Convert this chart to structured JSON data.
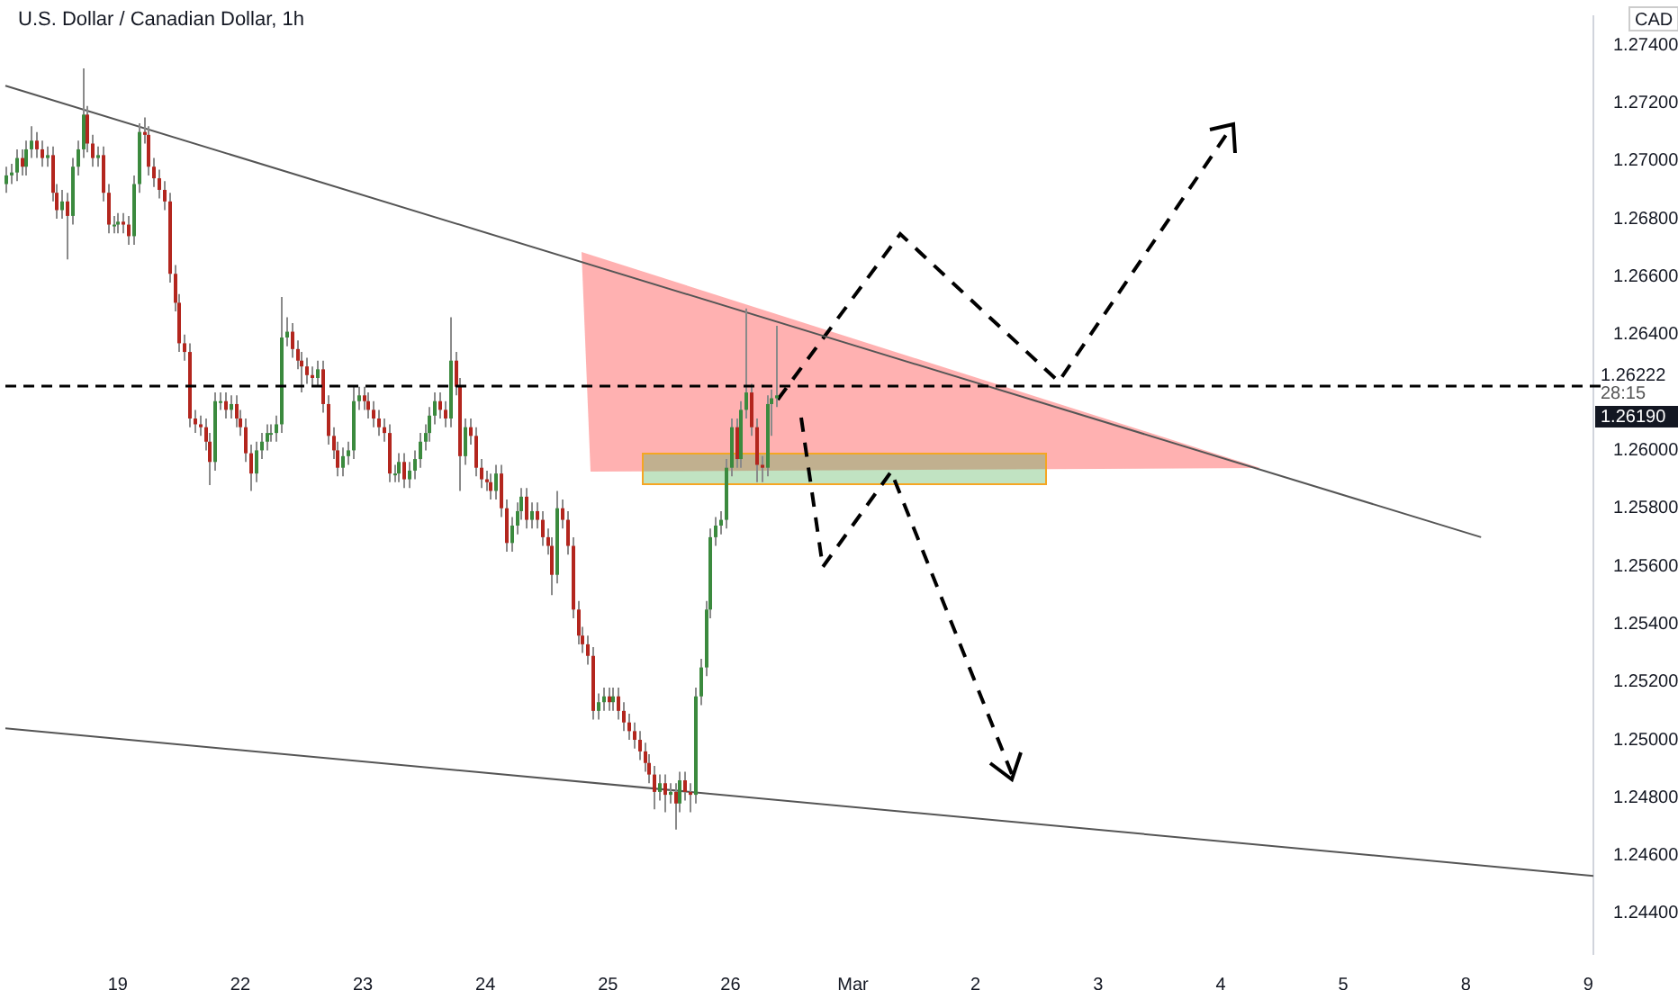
{
  "chart_data": {
    "type": "candlestick",
    "title": "U.S. Dollar / Canadian Dollar, 1h",
    "ylabel": "CAD",
    "categories": [
      null,
      null,
      null,
      null,
      null,
      null,
      null,
      null,
      null,
      null,
      null,
      null,
      null,
      null,
      null,
      null,
      null,
      null,
      null,
      null,
      null,
      null,
      "19",
      null,
      null,
      null,
      null,
      null,
      null,
      null,
      null,
      null,
      null,
      null,
      null,
      null,
      null,
      null,
      null,
      null,
      null,
      null,
      null,
      null,
      null,
      null,
      "22",
      null,
      null,
      null,
      null,
      null,
      null,
      null,
      null,
      null,
      null,
      null,
      null,
      null,
      null,
      null,
      null,
      null,
      null,
      null,
      null,
      null,
      null,
      null,
      "23",
      null,
      null,
      null,
      null,
      null,
      null,
      null,
      null,
      null,
      null,
      null,
      null,
      null,
      null,
      null,
      null,
      null,
      null,
      null,
      null,
      null,
      null,
      null,
      "24",
      null,
      null,
      null,
      null,
      null,
      null,
      null,
      null,
      null,
      null,
      null,
      null,
      null,
      null,
      null,
      null,
      null,
      null,
      null,
      null,
      null,
      null,
      null,
      "25",
      null,
      null,
      null,
      null,
      null,
      null,
      null,
      null,
      null,
      null,
      null,
      null,
      null,
      null,
      null,
      null,
      null,
      null,
      null,
      null,
      null,
      null,
      null,
      "26",
      null,
      null,
      null,
      null,
      null,
      null,
      null,
      null,
      null,
      null,
      null,
      null,
      null,
      null,
      null,
      null,
      null,
      null,
      null,
      null,
      null,
      null,
      null,
      "Mar",
      null,
      null,
      null,
      null,
      null,
      null,
      null,
      null,
      null,
      null,
      null,
      null,
      null,
      null,
      null,
      null,
      null,
      null,
      null,
      null,
      null,
      null,
      null,
      "2",
      null,
      null,
      null,
      null,
      null,
      null,
      null,
      null,
      null,
      null,
      null,
      null,
      null,
      null,
      null,
      null,
      null,
      null,
      null,
      null,
      null,
      null,
      null,
      "3",
      null,
      null,
      null,
      null,
      null,
      null,
      null,
      null,
      null,
      null,
      null,
      null,
      null,
      null,
      null,
      null,
      null,
      null,
      null,
      null,
      null,
      null,
      null,
      "4",
      null,
      null,
      null,
      null,
      null,
      null,
      null,
      null,
      null,
      null,
      null,
      null,
      null,
      null,
      null,
      null,
      null,
      null,
      null,
      null,
      null,
      null,
      null,
      "5",
      null,
      null,
      null,
      null,
      null,
      null,
      null,
      null,
      null,
      null,
      null,
      null,
      null,
      null,
      null,
      null,
      null,
      null,
      null,
      null,
      null,
      null,
      null,
      "8",
      null,
      null,
      null,
      null,
      null,
      null,
      null,
      null,
      null,
      null,
      null,
      null,
      null,
      null,
      null,
      null,
      null,
      null,
      null,
      null,
      null,
      null,
      null,
      "9",
      null
    ],
    "ohlc": [
      [
        1.2692,
        1.2698,
        1.2689,
        1.2695
      ],
      [
        1.2695,
        1.2699,
        1.2692,
        1.2696
      ],
      [
        1.2696,
        1.2704,
        1.2693,
        1.2701
      ],
      [
        1.2701,
        1.2704,
        1.2695,
        1.2698
      ],
      [
        1.2698,
        1.2707,
        1.2695,
        1.2704
      ],
      [
        1.2704,
        1.2712,
        1.2701,
        1.2707
      ],
      [
        1.2707,
        1.271,
        1.2701,
        1.2704
      ],
      [
        1.2704,
        1.2707,
        1.2698,
        1.2701
      ],
      [
        1.2701,
        1.2705,
        1.2698,
        1.2702
      ],
      [
        1.2702,
        1.2705,
        1.2686,
        1.2689
      ],
      [
        1.2689,
        1.2692,
        1.268,
        1.2683
      ],
      [
        1.2683,
        1.269,
        1.268,
        1.2686
      ],
      [
        1.2686,
        1.2689,
        1.2666,
        1.2681
      ],
      [
        1.2681,
        1.2701,
        1.2678,
        1.2698
      ],
      [
        1.2698,
        1.2707,
        1.2695,
        1.2704
      ],
      [
        1.2704,
        1.2732,
        1.2701,
        1.2716
      ],
      [
        1.2716,
        1.2719,
        1.2703,
        1.2706
      ],
      [
        1.2706,
        1.2709,
        1.2698,
        1.2701
      ],
      [
        1.2701,
        1.2705,
        1.2698,
        1.2702
      ],
      [
        1.2702,
        1.2705,
        1.2686,
        1.2689
      ],
      [
        1.2689,
        1.2692,
        1.2675,
        1.2678
      ],
      [
        1.2678,
        1.2681,
        1.2675,
        1.2678
      ],
      [
        1.2678,
        1.2682,
        1.2675,
        1.2679
      ],
      [
        1.2679,
        1.2682,
        1.2675,
        1.2678
      ],
      [
        1.2678,
        1.2681,
        1.2671,
        1.2674
      ],
      [
        1.2674,
        1.2695,
        1.2671,
        1.2692
      ],
      [
        1.2692,
        1.2713,
        1.2689,
        1.271
      ],
      [
        1.271,
        1.2715,
        1.2706,
        1.2709
      ],
      [
        1.2709,
        1.2712,
        1.2695,
        1.2698
      ],
      [
        1.2698,
        1.2701,
        1.2691,
        1.2694
      ],
      [
        1.2694,
        1.2697,
        1.2687,
        1.269
      ],
      [
        1.269,
        1.2693,
        1.2683,
        1.2686
      ],
      [
        1.2686,
        1.2689,
        1.2658,
        1.2661
      ],
      [
        1.2661,
        1.2664,
        1.2648,
        1.2651
      ],
      [
        1.2651,
        1.2654,
        1.2634,
        1.2637
      ],
      [
        1.2637,
        1.264,
        1.2631,
        1.2634
      ],
      [
        1.2634,
        1.2637,
        1.2608,
        1.2611
      ],
      [
        1.2611,
        1.2614,
        1.2606,
        1.2609
      ],
      [
        1.2609,
        1.2612,
        1.2605,
        1.2608
      ],
      [
        1.2608,
        1.2611,
        1.26,
        1.2603
      ],
      [
        1.2603,
        1.2606,
        1.2588,
        1.2596
      ],
      [
        1.2596,
        1.262,
        1.2593,
        1.2617
      ],
      [
        1.2617,
        1.262,
        1.2614,
        1.2617
      ],
      [
        1.2617,
        1.262,
        1.2611,
        1.2614
      ],
      [
        1.2614,
        1.2619,
        1.2611,
        1.2616
      ],
      [
        1.2616,
        1.2619,
        1.2608,
        1.2611
      ],
      [
        1.2611,
        1.2614,
        1.2605,
        1.2608
      ],
      [
        1.2608,
        1.2611,
        1.2596,
        1.2599
      ],
      [
        1.2599,
        1.2602,
        1.2586,
        1.2592
      ],
      [
        1.2592,
        1.2603,
        1.2589,
        1.26
      ],
      [
        1.26,
        1.2606,
        1.2597,
        1.2603
      ],
      [
        1.2603,
        1.2609,
        1.26,
        1.2606
      ],
      [
        1.2606,
        1.2609,
        1.2603,
        1.2606
      ],
      [
        1.2606,
        1.2612,
        1.2603,
        1.2609
      ],
      [
        1.2609,
        1.2653,
        1.2606,
        1.2639
      ],
      [
        1.2639,
        1.2646,
        1.2636,
        1.2641
      ],
      [
        1.2641,
        1.2644,
        1.2632,
        1.2635
      ],
      [
        1.2635,
        1.2638,
        1.2628,
        1.2631
      ],
      [
        1.2631,
        1.2634,
        1.262,
        1.2629
      ],
      [
        1.2629,
        1.2632,
        1.2623,
        1.2626
      ],
      [
        1.2626,
        1.2629,
        1.2622,
        1.2625
      ],
      [
        1.2625,
        1.2631,
        1.2622,
        1.2628
      ],
      [
        1.2628,
        1.2631,
        1.2613,
        1.2616
      ],
      [
        1.2616,
        1.2619,
        1.2602,
        1.2605
      ],
      [
        1.2605,
        1.2608,
        1.2597,
        1.26
      ],
      [
        1.26,
        1.2603,
        1.2591,
        1.2594
      ],
      [
        1.2594,
        1.2601,
        1.2591,
        1.2598
      ],
      [
        1.2598,
        1.2603,
        1.2595,
        1.26
      ],
      [
        1.26,
        1.2622,
        1.2597,
        1.2617
      ],
      [
        1.2617,
        1.2622,
        1.2614,
        1.2619
      ],
      [
        1.2619,
        1.2622,
        1.2614,
        1.2617
      ],
      [
        1.2617,
        1.262,
        1.2611,
        1.2614
      ],
      [
        1.2614,
        1.2617,
        1.2608,
        1.2611
      ],
      [
        1.2611,
        1.2614,
        1.2605,
        1.2608
      ],
      [
        1.2608,
        1.2611,
        1.2603,
        1.2606
      ],
      [
        1.2606,
        1.2609,
        1.2589,
        1.2592
      ],
      [
        1.2592,
        1.2595,
        1.2589,
        1.2592
      ],
      [
        1.2592,
        1.2599,
        1.2589,
        1.2596
      ],
      [
        1.2596,
        1.2599,
        1.2587,
        1.259
      ],
      [
        1.259,
        1.2596,
        1.2587,
        1.2593
      ],
      [
        1.2593,
        1.26,
        1.259,
        1.2597
      ],
      [
        1.2597,
        1.2606,
        1.2594,
        1.2603
      ],
      [
        1.2603,
        1.2609,
        1.26,
        1.2606
      ],
      [
        1.2606,
        1.2615,
        1.2603,
        1.2612
      ],
      [
        1.2612,
        1.262,
        1.2609,
        1.2617
      ],
      [
        1.2617,
        1.262,
        1.2611,
        1.2614
      ],
      [
        1.2614,
        1.2617,
        1.2608,
        1.2611
      ],
      [
        1.2611,
        1.2646,
        1.2608,
        1.2631
      ],
      [
        1.2631,
        1.2634,
        1.2619,
        1.2622
      ],
      [
        1.2622,
        1.2625,
        1.2586,
        1.2598
      ],
      [
        1.2598,
        1.2611,
        1.2595,
        1.2608
      ],
      [
        1.2608,
        1.2611,
        1.2602,
        1.2605
      ],
      [
        1.2605,
        1.2608,
        1.2591,
        1.2594
      ],
      [
        1.2594,
        1.2597,
        1.2587,
        1.259
      ],
      [
        1.259,
        1.2593,
        1.2586,
        1.2589
      ],
      [
        1.2589,
        1.2592,
        1.2583,
        1.2586
      ],
      [
        1.2586,
        1.2595,
        1.2583,
        1.2592
      ],
      [
        1.2592,
        1.2595,
        1.2577,
        1.258
      ],
      [
        1.258,
        1.2583,
        1.2565,
        1.2568
      ],
      [
        1.2568,
        1.2577,
        1.2565,
        1.2574
      ],
      [
        1.2574,
        1.2582,
        1.2571,
        1.2579
      ],
      [
        1.2579,
        1.2587,
        1.2576,
        1.2584
      ],
      [
        1.2584,
        1.2587,
        1.2573,
        1.2576
      ],
      [
        1.2576,
        1.2582,
        1.2573,
        1.2579
      ],
      [
        1.2579,
        1.2582,
        1.2573,
        1.2576
      ],
      [
        1.2576,
        1.2579,
        1.2567,
        1.257
      ],
      [
        1.257,
        1.2573,
        1.2564,
        1.2567
      ],
      [
        1.2567,
        1.257,
        1.255,
        1.2557
      ],
      [
        1.2557,
        1.2586,
        1.2554,
        1.258
      ],
      [
        1.258,
        1.2583,
        1.2573,
        1.2576
      ],
      [
        1.2576,
        1.2579,
        1.2564,
        1.2567
      ],
      [
        1.2567,
        1.257,
        1.2542,
        1.2545
      ],
      [
        1.2545,
        1.2548,
        1.2533,
        1.2536
      ],
      [
        1.2536,
        1.2539,
        1.253,
        1.2533
      ],
      [
        1.2533,
        1.2536,
        1.2526,
        1.2529
      ],
      [
        1.2529,
        1.2532,
        1.2507,
        1.251
      ],
      [
        1.251,
        1.2516,
        1.2507,
        1.2513
      ],
      [
        1.2513,
        1.2518,
        1.251,
        1.2515
      ],
      [
        1.2515,
        1.2518,
        1.251,
        1.2513
      ],
      [
        1.2513,
        1.2518,
        1.251,
        1.2515
      ],
      [
        1.2515,
        1.2518,
        1.2507,
        1.251
      ],
      [
        1.251,
        1.2513,
        1.2503,
        1.2506
      ],
      [
        1.2506,
        1.2509,
        1.25,
        1.2503
      ],
      [
        1.2503,
        1.2506,
        1.2497,
        1.25
      ],
      [
        1.25,
        1.2503,
        1.2493,
        1.2496
      ],
      [
        1.2496,
        1.2499,
        1.2489,
        1.2492
      ],
      [
        1.2492,
        1.2495,
        1.2485,
        1.2488
      ],
      [
        1.2488,
        1.2491,
        1.2476,
        1.2482
      ],
      [
        1.2482,
        1.2488,
        1.2479,
        1.2485
      ],
      [
        1.2485,
        1.2488,
        1.2475,
        1.2481
      ],
      [
        1.2481,
        1.2485,
        1.2478,
        1.2482
      ],
      [
        1.2482,
        1.2485,
        1.2469,
        1.2478
      ],
      [
        1.2478,
        1.2489,
        1.2475,
        1.2486
      ],
      [
        1.2486,
        1.2489,
        1.2479,
        1.2482
      ],
      [
        1.2482,
        1.2485,
        1.2475,
        1.2481
      ],
      [
        1.2481,
        1.2518,
        1.2478,
        1.2515
      ],
      [
        1.2515,
        1.2528,
        1.2512,
        1.2525
      ],
      [
        1.2525,
        1.2548,
        1.2522,
        1.2545
      ],
      [
        1.2545,
        1.2573,
        1.2542,
        1.257
      ],
      [
        1.257,
        1.2577,
        1.2567,
        1.2574
      ],
      [
        1.2574,
        1.2579,
        1.2571,
        1.2576
      ],
      [
        1.2576,
        1.2597,
        1.2573,
        1.2594
      ],
      [
        1.2594,
        1.2611,
        1.2591,
        1.2608
      ],
      [
        1.2608,
        1.2611,
        1.2594,
        1.2597
      ],
      [
        1.2597,
        1.2617,
        1.2594,
        1.2614
      ],
      [
        1.2614,
        1.2649,
        1.2611,
        1.262
      ],
      [
        1.262,
        1.2623,
        1.2605,
        1.2608
      ],
      [
        1.2608,
        1.2611,
        1.2589,
        1.2595
      ],
      [
        1.2595,
        1.2598,
        1.2589,
        1.2594
      ],
      [
        1.2594,
        1.2619,
        1.2591,
        1.2616
      ],
      [
        1.2616,
        1.2621,
        1.2605,
        1.2618
      ],
      [
        1.2618,
        1.2643,
        1.2615,
        1.2619
      ],
      null,
      null,
      null,
      null,
      null,
      null,
      null,
      null,
      null,
      null,
      null,
      null,
      null,
      null,
      null,
      null,
      null,
      null,
      null,
      null,
      null,
      null,
      null,
      null,
      null,
      null,
      null,
      null,
      null,
      null,
      null,
      null,
      null,
      null,
      null,
      null,
      null,
      null,
      null,
      null,
      null,
      null,
      null,
      null,
      null,
      null,
      null,
      null,
      null,
      null,
      null,
      null,
      null,
      null,
      null,
      null,
      null,
      null,
      null,
      null,
      null,
      null,
      null,
      null,
      null,
      null,
      null,
      null,
      null,
      null,
      null,
      null,
      null,
      null,
      null,
      null,
      null,
      null,
      null,
      null,
      null,
      null,
      null,
      null,
      null,
      null,
      null,
      null,
      null,
      null,
      null,
      null,
      null,
      null,
      null,
      null,
      null,
      null,
      null,
      null,
      null,
      null,
      null,
      null,
      null,
      null,
      null,
      null,
      null,
      null,
      null,
      null,
      null,
      null,
      null,
      null,
      null,
      null,
      null,
      null,
      null,
      null,
      null,
      null,
      null,
      null,
      null,
      null,
      null,
      null,
      null,
      null,
      null,
      null,
      null,
      null,
      null,
      null,
      null,
      null,
      null,
      null,
      null,
      null,
      null,
      null,
      null,
      null,
      null,
      null,
      null,
      null,
      null,
      null,
      null,
      null,
      null,
      null,
      null,
      null
    ],
    "series": [
      {
        "type": "line",
        "color": "#555555",
        "values": [
          1.2726,
          null,
          null,
          null,
          null,
          null,
          null,
          null,
          null,
          null,
          null,
          null,
          null,
          null,
          null,
          null,
          null,
          null,
          null,
          null,
          null,
          null,
          null,
          null,
          null,
          null,
          null,
          null,
          null,
          null,
          null,
          null,
          null,
          null,
          null,
          null,
          null,
          null,
          null,
          null,
          null,
          null,
          null,
          null,
          null,
          null,
          null,
          null,
          null,
          null,
          null,
          null,
          null,
          null,
          null,
          null,
          null,
          null,
          null,
          null,
          null,
          null,
          null,
          null,
          null,
          null,
          null,
          null,
          null,
          null,
          null,
          null,
          null,
          null,
          null,
          null,
          null,
          null,
          null,
          null,
          null,
          null,
          null,
          null,
          null,
          null,
          null,
          null,
          null,
          null,
          null,
          null,
          null,
          null,
          null,
          null,
          null,
          null,
          null,
          null,
          null,
          null,
          null,
          null,
          null,
          null,
          null,
          null,
          null,
          null,
          null,
          null,
          null,
          null,
          null,
          null,
          null,
          null,
          null,
          null,
          null,
          null,
          null,
          null,
          null,
          null,
          null,
          null,
          null,
          null,
          null,
          null,
          null,
          null,
          null,
          null,
          null,
          null,
          null,
          null,
          null,
          null,
          null,
          null,
          null,
          null,
          null,
          null,
          null,
          null,
          null,
          null,
          null,
          null,
          null,
          null,
          null,
          null,
          null,
          null,
          null,
          null,
          null,
          null,
          null,
          null,
          null,
          null,
          null,
          null,
          null,
          null,
          null,
          null,
          null,
          null,
          null,
          null,
          null,
          null,
          null,
          null,
          null,
          null,
          null,
          null,
          null,
          null,
          null,
          null,
          null,
          null,
          null,
          null,
          null,
          null,
          null,
          null,
          null,
          null,
          null,
          null,
          null,
          null,
          null,
          null,
          null,
          null,
          null,
          null,
          null,
          null,
          null,
          null,
          null,
          null,
          null,
          null,
          null,
          null,
          null,
          null,
          null,
          null,
          null,
          null,
          null,
          null,
          null,
          null,
          null,
          null,
          null,
          null,
          null,
          null,
          null,
          null,
          null,
          null,
          null,
          null,
          null,
          null,
          null,
          null,
          null,
          null,
          null,
          null,
          null,
          null,
          null,
          null,
          null,
          null,
          null,
          null,
          null,
          null,
          null,
          null,
          null,
          null,
          null,
          null,
          null,
          null,
          null,
          null,
          null,
          null,
          null,
          null,
          null,
          null,
          null,
          null,
          null,
          null,
          null,
          null,
          null,
          null,
          null,
          null,
          null,
          null,
          null,
          1.257,
          null,
          null,
          null,
          null,
          null,
          null,
          null,
          null,
          null,
          null,
          null,
          null,
          null,
          null,
          null,
          null,
          null,
          null,
          null,
          null,
          null,
          null
        ]
      },
      {
        "type": "line",
        "color": "#555555",
        "values": [
          1.2504,
          null,
          null,
          null,
          null,
          null,
          null,
          null,
          null,
          null,
          null,
          null,
          null,
          null,
          null,
          null,
          null,
          null,
          null,
          null,
          null,
          null,
          null,
          null,
          null,
          null,
          null,
          null,
          null,
          null,
          null,
          null,
          null,
          null,
          null,
          null,
          null,
          null,
          null,
          null,
          null,
          null,
          null,
          null,
          null,
          null,
          null,
          null,
          null,
          null,
          null,
          null,
          null,
          null,
          null,
          null,
          null,
          null,
          null,
          null,
          null,
          null,
          null,
          null,
          null,
          null,
          null,
          null,
          null,
          null,
          null,
          null,
          null,
          null,
          null,
          null,
          null,
          null,
          null,
          null,
          null,
          null,
          null,
          null,
          null,
          null,
          null,
          null,
          null,
          null,
          null,
          null,
          null,
          null,
          null,
          null,
          null,
          null,
          null,
          null,
          null,
          null,
          null,
          null,
          null,
          null,
          null,
          null,
          null,
          null,
          null,
          null,
          null,
          null,
          null,
          null,
          null,
          null,
          null,
          null,
          null,
          null,
          null,
          null,
          null,
          null,
          null,
          null,
          null,
          null,
          null,
          null,
          null,
          null,
          null,
          null,
          null,
          null,
          null,
          null,
          null,
          null,
          null,
          null,
          null,
          null,
          null,
          null,
          null,
          null,
          null,
          null,
          null,
          null,
          null,
          null,
          null,
          null,
          null,
          null,
          null,
          null,
          null,
          null,
          null,
          null,
          null,
          null,
          null,
          null,
          null,
          null,
          null,
          null,
          null,
          null,
          null,
          null,
          null,
          null,
          null,
          null,
          null,
          null,
          null,
          null,
          null,
          null,
          null,
          null,
          null,
          null,
          null,
          null,
          null,
          null,
          null,
          null,
          null,
          null,
          null,
          null,
          null,
          null,
          null,
          null,
          null,
          null,
          null,
          null,
          null,
          null,
          null,
          null,
          null,
          null,
          null,
          null,
          null,
          null,
          null,
          null,
          null,
          null,
          null,
          null,
          null,
          null,
          null,
          null,
          null,
          null,
          null,
          null,
          null,
          null,
          null,
          null,
          null,
          null,
          null,
          null,
          null,
          null,
          null,
          null,
          null,
          null,
          null,
          null,
          null,
          null,
          null,
          null,
          null,
          null,
          null,
          null,
          null,
          null,
          null,
          null,
          null,
          null,
          null,
          null,
          null,
          null,
          null,
          null,
          null,
          null,
          null,
          null,
          null,
          null,
          null,
          null,
          null,
          null,
          null,
          null,
          null,
          null,
          null,
          null,
          null,
          null,
          null,
          null,
          null,
          null,
          null,
          null,
          null,
          null,
          null,
          null,
          null,
          null,
          null,
          null,
          null,
          null,
          null,
          null,
          null,
          null,
          null,
          null,
          null,
          1.2453
        ]
      }
    ],
    "ylim": [
      1.2426,
      1.275
    ],
    "yticks": [
      {
        "value": 1.244,
        "label": "1.24400"
      },
      {
        "value": 1.246,
        "label": "1.24600"
      },
      {
        "value": 1.248,
        "label": "1.24800"
      },
      {
        "value": 1.25,
        "label": "1.25000"
      },
      {
        "value": 1.252,
        "label": "1.25200"
      },
      {
        "value": 1.254,
        "label": "1.25400"
      },
      {
        "value": 1.256,
        "label": "1.25600"
      },
      {
        "value": 1.258,
        "label": "1.25800"
      },
      {
        "value": 1.26,
        "label": "1.26000"
      },
      {
        "value": 1.264,
        "label": "1.26400"
      },
      {
        "value": 1.266,
        "label": "1.26600"
      },
      {
        "value": 1.268,
        "label": "1.26800"
      },
      {
        "value": 1.27,
        "label": "1.27000"
      },
      {
        "value": 1.272,
        "label": "1.27200"
      },
      {
        "value": 1.274,
        "label": "1.27400"
      }
    ],
    "ref_lines": [
      {
        "axis": "y",
        "value": 1.26222,
        "label": "1.26222",
        "color": "#000000",
        "line_style": "dashed"
      }
    ],
    "annotations": [
      "28:15",
      "1.26190"
    ]
  }
}
